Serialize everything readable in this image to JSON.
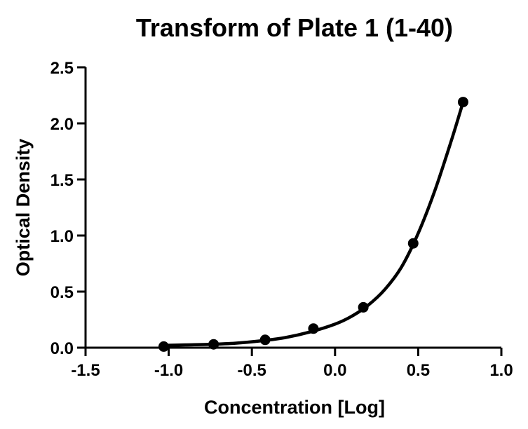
{
  "chart_data": {
    "type": "scatter",
    "title": "Transform of Plate 1 (1-40)",
    "xlabel": "Concentration [Log]",
    "ylabel": "Optical Density",
    "xlim": [
      -1.5,
      1.0
    ],
    "ylim": [
      0.0,
      2.5
    ],
    "x_ticks": [
      "-1.5",
      "-1.0",
      "-0.5",
      "0.0",
      "0.5",
      "1.0"
    ],
    "y_ticks": [
      "0.0",
      "0.5",
      "1.0",
      "1.5",
      "2.0",
      "2.5"
    ],
    "grid": false,
    "series": [
      {
        "points": [
          {
            "x": -1.03,
            "y": 0.01
          },
          {
            "x": -0.73,
            "y": 0.03
          },
          {
            "x": -0.42,
            "y": 0.07
          },
          {
            "x": -0.13,
            "y": 0.17
          },
          {
            "x": 0.17,
            "y": 0.36
          },
          {
            "x": 0.47,
            "y": 0.93
          },
          {
            "x": 0.77,
            "y": 2.19
          }
        ],
        "fit_curve": {
          "x": [
            -1.03,
            -0.9,
            -0.75,
            -0.6,
            -0.45,
            -0.3,
            -0.15,
            0.0,
            0.1,
            0.2,
            0.3,
            0.4,
            0.5,
            0.6,
            0.7,
            0.77
          ],
          "y": [
            0.02,
            0.025,
            0.03,
            0.04,
            0.06,
            0.09,
            0.14,
            0.21,
            0.28,
            0.38,
            0.52,
            0.72,
            1.02,
            1.4,
            1.85,
            2.19
          ]
        },
        "color": "#000000"
      }
    ]
  }
}
